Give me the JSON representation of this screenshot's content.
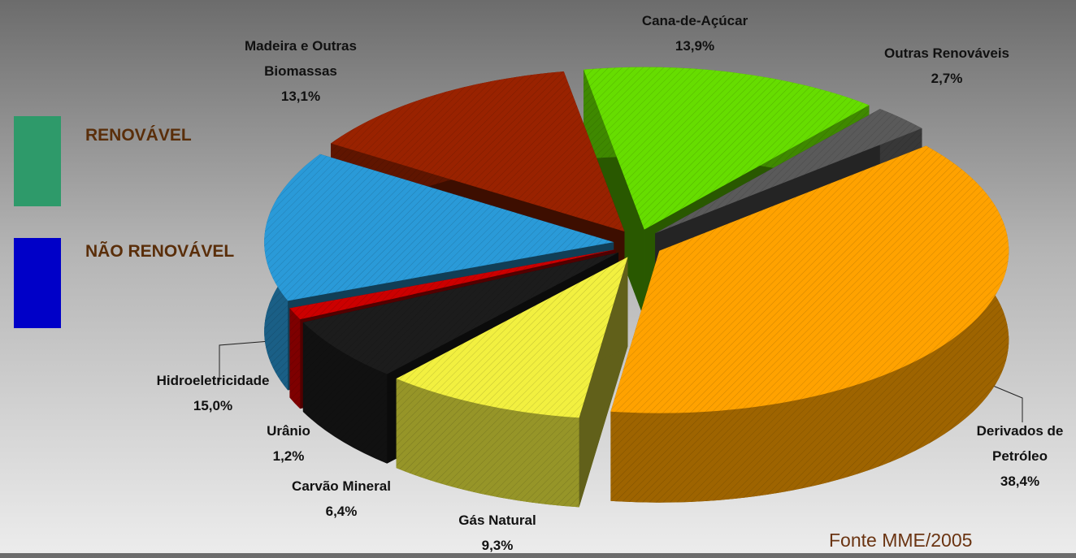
{
  "chart_data": {
    "type": "pie",
    "categories": [
      "Cana-de-Açúcar",
      "Outras Renováveis",
      "Derivados de Petróleo",
      "Gás Natural",
      "Carvão Mineral",
      "Urânio",
      "Hidroeletricidade",
      "Madeira e Outras Biomassas"
    ],
    "values": [
      13.9,
      2.7,
      38.4,
      9.3,
      6.4,
      1.2,
      15.0,
      13.1
    ],
    "value_labels": [
      "13,9%",
      "2,7%",
      "38,4%",
      "9,3%",
      "6,4%",
      "1,2%",
      "15,0%",
      "13,1%"
    ],
    "colors": [
      "#66dd00",
      "#5a5a5a",
      "#ffa200",
      "#f2f040",
      "#1c1c1c",
      "#cc0000",
      "#2a9ad8",
      "#992200"
    ],
    "legend": [
      {
        "label": "RENOVÁVEL",
        "color": "#2e9a6a"
      },
      {
        "label": "NÃO RENOVÁVEL",
        "color": "#0000c8"
      }
    ],
    "source": "Fonte MME/2005"
  }
}
